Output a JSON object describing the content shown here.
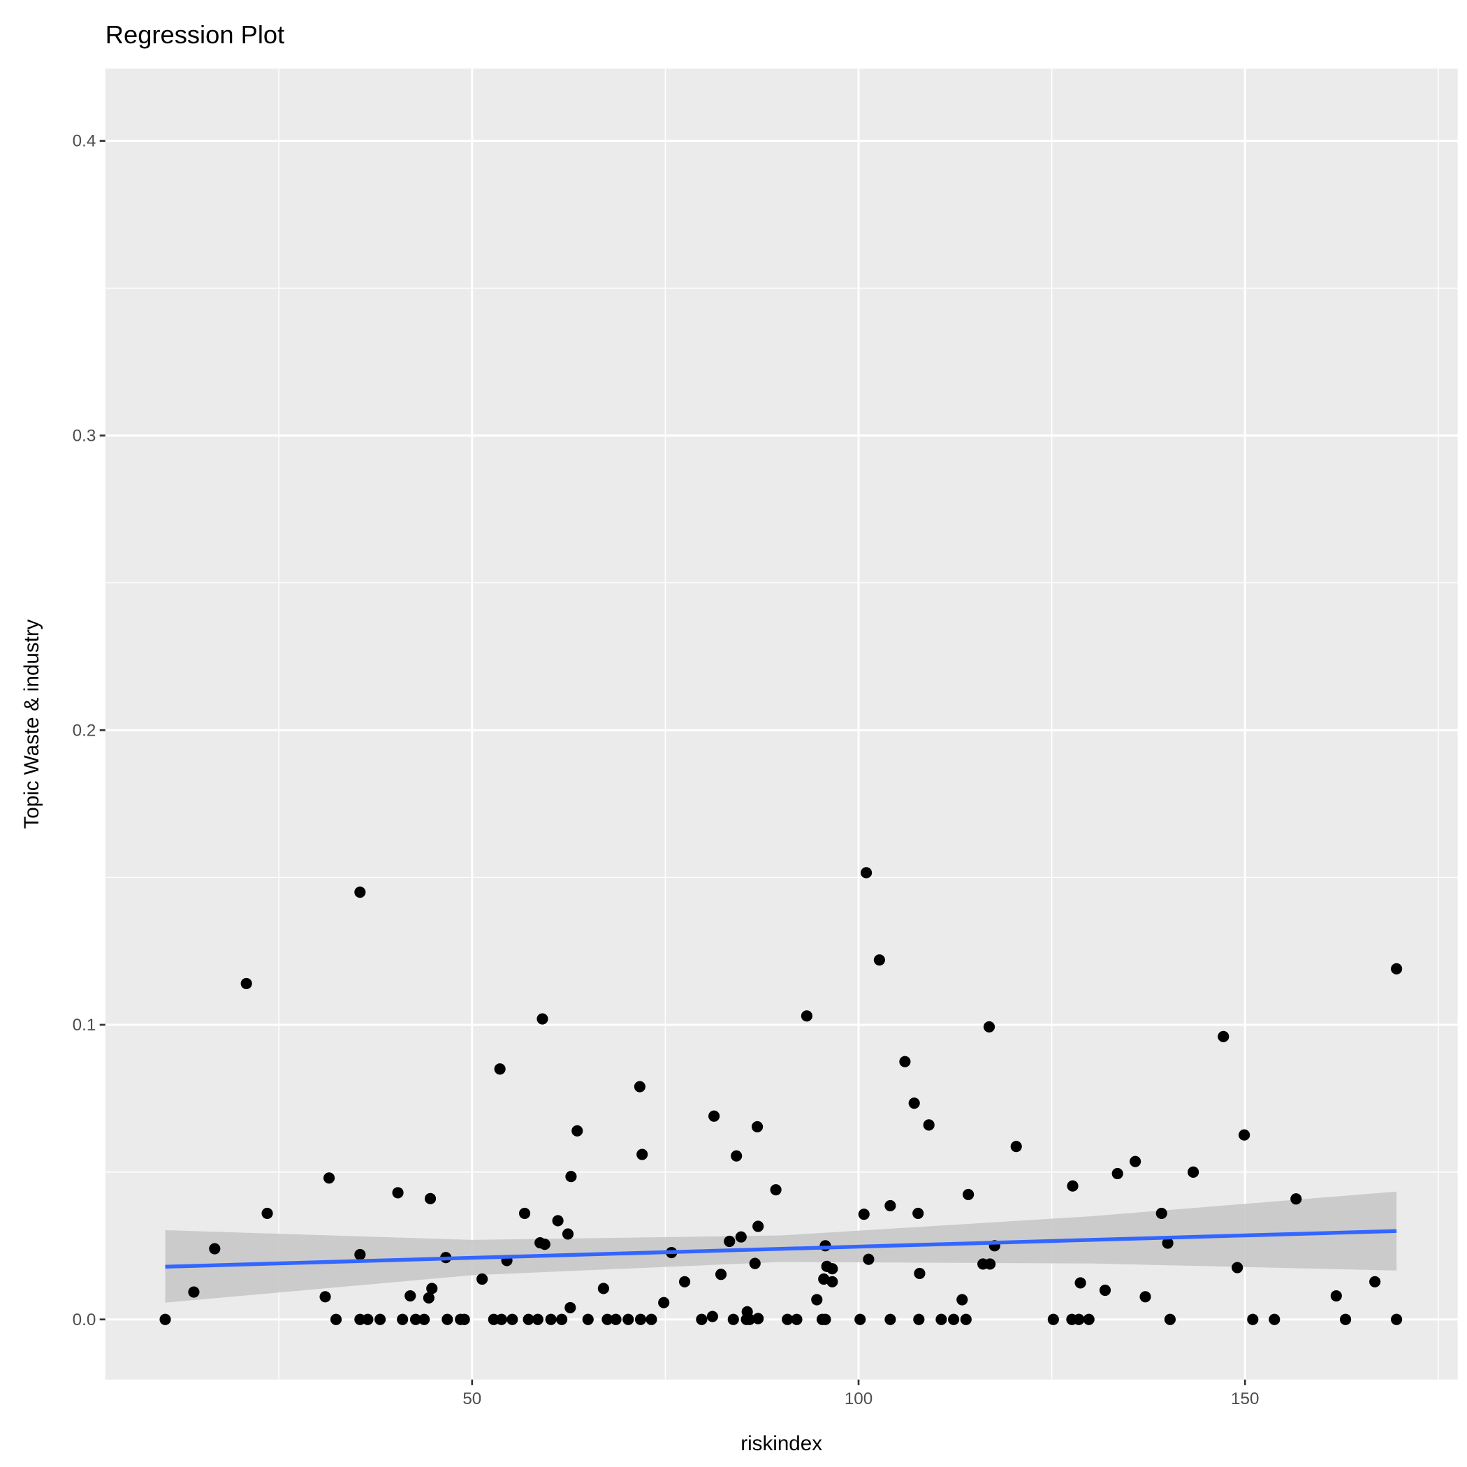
{
  "chart_data": {
    "type": "scatter",
    "title": "Regression Plot",
    "xlabel": "riskindex",
    "ylabel": "Topic Waste & industry",
    "xlim": [
      2.55,
      177.5
    ],
    "ylim": [
      -0.0204,
      0.4245
    ],
    "xticks": [
      50,
      100,
      150
    ],
    "xtick_labels": [
      "50",
      "100",
      "150"
    ],
    "xminor": [
      25,
      75,
      125,
      175
    ],
    "yticks": [
      0.0,
      0.1,
      0.2,
      0.3,
      0.4
    ],
    "ytick_labels": [
      "0.0",
      "0.1",
      "0.2",
      "0.3",
      "0.4"
    ],
    "yminor": [
      0.05,
      0.15,
      0.25,
      0.35
    ],
    "grid": true,
    "colors": {
      "panel": "#EBEBEB",
      "grid": "#FFFFFF",
      "point": "#000000",
      "line": "#3366FF",
      "band": "#C8C8C8"
    },
    "points": [
      [
        10.3,
        0
      ],
      [
        14.0,
        0.0093
      ],
      [
        16.7,
        0.024
      ],
      [
        20.8,
        0.114
      ],
      [
        23.5,
        0.036
      ],
      [
        31.0,
        0.0077
      ],
      [
        31.5,
        0.048
      ],
      [
        32.4,
        0
      ],
      [
        35.5,
        0.145
      ],
      [
        35.5,
        0.022
      ],
      [
        35.5,
        0
      ],
      [
        36.5,
        0
      ],
      [
        38.1,
        0
      ],
      [
        40.4,
        0.043
      ],
      [
        41.0,
        0
      ],
      [
        42.0,
        0.008
      ],
      [
        42.7,
        0
      ],
      [
        43.8,
        0
      ],
      [
        44.4,
        0.0073
      ],
      [
        44.6,
        0.041
      ],
      [
        44.8,
        0.0105
      ],
      [
        46.6,
        0.021
      ],
      [
        46.8,
        0
      ],
      [
        48.5,
        0
      ],
      [
        49.0,
        0
      ],
      [
        51.3,
        0.0137
      ],
      [
        52.8,
        0
      ],
      [
        53.8,
        0
      ],
      [
        55.2,
        0
      ],
      [
        53.6,
        0.085
      ],
      [
        54.5,
        0.02
      ],
      [
        56.8,
        0.036
      ],
      [
        57.3,
        0
      ],
      [
        58.5,
        0
      ],
      [
        58.8,
        0.026
      ],
      [
        59.1,
        0.102
      ],
      [
        59.4,
        0.0255
      ],
      [
        60.2,
        0
      ],
      [
        61.6,
        0
      ],
      [
        61.1,
        0.0335
      ],
      [
        62.4,
        0.029
      ],
      [
        62.7,
        0.004
      ],
      [
        62.8,
        0.0485
      ],
      [
        63.6,
        0.064
      ],
      [
        65.0,
        0
      ],
      [
        67.0,
        0.0105
      ],
      [
        67.5,
        0
      ],
      [
        68.6,
        0
      ],
      [
        70.2,
        0
      ],
      [
        71.8,
        0
      ],
      [
        73.2,
        0
      ],
      [
        71.7,
        0.079
      ],
      [
        72.0,
        0.056
      ],
      [
        74.8,
        0.0057
      ],
      [
        75.8,
        0.0227
      ],
      [
        77.5,
        0.0128
      ],
      [
        79.7,
        0
      ],
      [
        81.1,
        0.001
      ],
      [
        81.3,
        0.069
      ],
      [
        82.2,
        0.0153
      ],
      [
        83.3,
        0.0265
      ],
      [
        83.8,
        0
      ],
      [
        84.2,
        0.0555
      ],
      [
        84.8,
        0.028
      ],
      [
        85.5,
        0
      ],
      [
        85.9,
        0
      ],
      [
        85.6,
        0.0026
      ],
      [
        86.6,
        0.019
      ],
      [
        86.9,
        0.0654
      ],
      [
        87.0,
        0.0316
      ],
      [
        87.0,
        0.0003
      ],
      [
        89.3,
        0.044
      ],
      [
        90.8,
        0
      ],
      [
        92.0,
        0
      ],
      [
        93.3,
        0.103
      ],
      [
        94.6,
        0.0067
      ],
      [
        95.3,
        0
      ],
      [
        95.7,
        0
      ],
      [
        95.5,
        0.0137
      ],
      [
        95.7,
        0.025
      ],
      [
        95.9,
        0.018
      ],
      [
        96.6,
        0.0172
      ],
      [
        96.6,
        0.0128
      ],
      [
        100.2,
        0
      ],
      [
        100.7,
        0.0357
      ],
      [
        101.0,
        0.1516
      ],
      [
        101.3,
        0.0204
      ],
      [
        102.7,
        0.122
      ],
      [
        104.1,
        0.0386
      ],
      [
        104.1,
        0
      ],
      [
        106.0,
        0.0875
      ],
      [
        107.2,
        0.0734
      ],
      [
        107.7,
        0.036
      ],
      [
        107.8,
        0
      ],
      [
        107.9,
        0.0156
      ],
      [
        109.1,
        0.066
      ],
      [
        110.7,
        0
      ],
      [
        112.3,
        0
      ],
      [
        113.9,
        0
      ],
      [
        113.4,
        0.0067
      ],
      [
        114.2,
        0.0424
      ],
      [
        116.1,
        0.0188
      ],
      [
        116.9,
        0.0993
      ],
      [
        117.0,
        0.0188
      ],
      [
        117.6,
        0.025
      ],
      [
        120.4,
        0.0587
      ],
      [
        125.2,
        0
      ],
      [
        127.6,
        0
      ],
      [
        128.5,
        0
      ],
      [
        129.8,
        0
      ],
      [
        127.7,
        0.0453
      ],
      [
        128.7,
        0.0124
      ],
      [
        131.9,
        0.0099
      ],
      [
        133.5,
        0.0495
      ],
      [
        135.8,
        0.0536
      ],
      [
        137.1,
        0.0077
      ],
      [
        139.2,
        0.036
      ],
      [
        140.0,
        0.0259
      ],
      [
        140.3,
        0
      ],
      [
        143.3,
        0.05
      ],
      [
        147.2,
        0.096
      ],
      [
        149.0,
        0.0176
      ],
      [
        149.9,
        0.0626
      ],
      [
        151.0,
        0
      ],
      [
        153.8,
        0
      ],
      [
        156.6,
        0.0409
      ],
      [
        161.8,
        0.008
      ],
      [
        163.0,
        0
      ],
      [
        166.8,
        0.0128
      ],
      [
        169.6,
        0.119
      ],
      [
        169.6,
        0
      ]
    ],
    "regression_line": [
      [
        10.3,
        0.0179
      ],
      [
        169.6,
        0.03
      ]
    ],
    "confidence_band": [
      [
        10.3,
        0.0057,
        0.0303
      ],
      [
        50,
        0.015,
        0.027
      ],
      [
        90,
        0.0195,
        0.0285
      ],
      [
        130,
        0.019,
        0.035
      ],
      [
        169.6,
        0.0166,
        0.0434
      ]
    ]
  }
}
